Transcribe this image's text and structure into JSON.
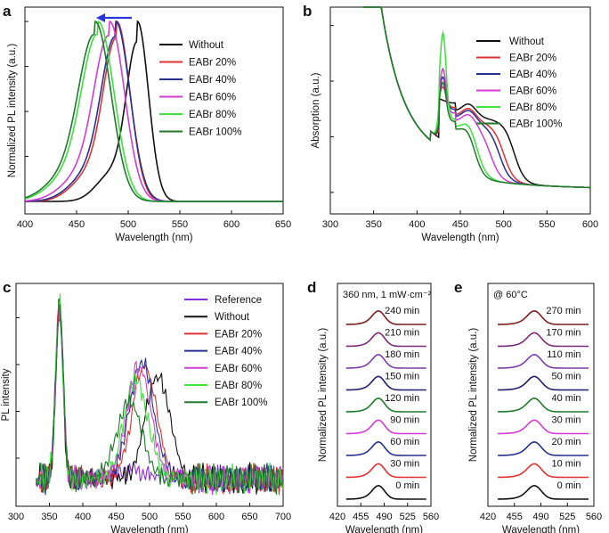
{
  "colors": {
    "Without": "#111111",
    "EABr 20%": "#e03030",
    "EABr 40%": "#27308f",
    "EABr 60%": "#d23cd2",
    "EABr 80%": "#3ee03e",
    "EABr 100%": "#1f7a2a",
    "Reference": "#8a2be2"
  },
  "panels": {
    "a": {
      "letter": "a"
    },
    "b": {
      "letter": "b"
    },
    "c": {
      "letter": "c"
    },
    "d": {
      "letter": "d",
      "annotation": "360 nm, 1 mW·cm⁻²"
    },
    "e": {
      "letter": "e",
      "annotation": "@ 60°C"
    }
  },
  "chart_data": [
    {
      "id": "a",
      "type": "line",
      "xlabel": "Wavelength (nm)",
      "ylabel": "Normalized PL intensity (a.u.)",
      "xlim": [
        400,
        650
      ],
      "xticks": [
        "400",
        "450",
        "500",
        "550",
        "600",
        "650"
      ],
      "ylim": [
        0,
        1.05
      ],
      "annotation": "blue arrow pointing left (blue shift)",
      "legend_position": "top-right",
      "series": [
        {
          "name": "Without",
          "peak": 509,
          "fwhm": 25
        },
        {
          "name": "EABr 20%",
          "peak": 489,
          "fwhm": 30
        },
        {
          "name": "EABr 40%",
          "peak": 488,
          "fwhm": 32
        },
        {
          "name": "EABr 60%",
          "peak": 482,
          "fwhm": 34
        },
        {
          "name": "EABr 80%",
          "peak": 471,
          "fwhm": 36
        },
        {
          "name": "EABr 100%",
          "peak": 468,
          "fwhm": 36
        }
      ]
    },
    {
      "id": "b",
      "type": "line",
      "xlabel": "Wavelength (nm)",
      "ylabel": "Absorption (a.u.)",
      "xlim": [
        300,
        600
      ],
      "xticks": [
        "300",
        "350",
        "400",
        "450",
        "500",
        "550",
        "600"
      ],
      "legend_position": "top-right",
      "series": [
        {
          "name": "Without",
          "band_edge": 512,
          "peak_430": 0.0
        },
        {
          "name": "EABr 20%",
          "band_edge": 500,
          "peak_430": 0.03
        },
        {
          "name": "EABr 40%",
          "band_edge": 495,
          "peak_430": 0.05
        },
        {
          "name": "EABr 60%",
          "band_edge": 485,
          "peak_430": 0.07
        },
        {
          "name": "EABr 80%",
          "band_edge": 470,
          "peak_430": 0.14
        },
        {
          "name": "EABr 100%",
          "band_edge": 465,
          "peak_430": 0.06
        }
      ]
    },
    {
      "id": "c",
      "type": "line",
      "xlabel": "Wavelength (nm)",
      "ylabel": "PL intensity",
      "xlim": [
        300,
        700
      ],
      "xticks": [
        "300",
        "350",
        "400",
        "450",
        "500",
        "550",
        "600",
        "650",
        "700"
      ],
      "legend_position": "top-right",
      "series": [
        {
          "name": "Reference",
          "peak": 0
        },
        {
          "name": "Without",
          "peak": 512
        },
        {
          "name": "EABr 20%",
          "peak": 492
        },
        {
          "name": "EABr 40%",
          "peak": 488
        },
        {
          "name": "EABr 60%",
          "peak": 484
        },
        {
          "name": "EABr 80%",
          "peak": 480
        },
        {
          "name": "EABr 100%",
          "peak": 470
        }
      ]
    },
    {
      "id": "d",
      "type": "line",
      "xlabel": "Wavelength (nm)",
      "ylabel": "Normalized PL intensity (a.u.)",
      "xlim": [
        420,
        560
      ],
      "xticks": [
        "420",
        "455",
        "490",
        "525",
        "560"
      ],
      "traces": [
        {
          "label": "240 min",
          "color": "#7a1e1e"
        },
        {
          "label": "210 min",
          "color": "#7a2a7a"
        },
        {
          "label": "180 min",
          "color": "#7d3ca8"
        },
        {
          "label": "150 min",
          "color": "#1f1f6e"
        },
        {
          "label": "120 min",
          "color": "#1f7a2a"
        },
        {
          "label": "90 min",
          "color": "#d23cd2"
        },
        {
          "label": "60 min",
          "color": "#27308f"
        },
        {
          "label": "30 min",
          "color": "#e03030"
        },
        {
          "label": "0 min",
          "color": "#111111"
        }
      ]
    },
    {
      "id": "e",
      "type": "line",
      "xlabel": "Wavelength (nm)",
      "ylabel": "Normalized PL intensity (a.u.)",
      "xlim": [
        420,
        560
      ],
      "xticks": [
        "420",
        "455",
        "490",
        "525",
        "560"
      ],
      "traces": [
        {
          "label": "270 min",
          "color": "#7a1e1e"
        },
        {
          "label": "170 min",
          "color": "#7a2a7a"
        },
        {
          "label": "110 min",
          "color": "#7d3ca8"
        },
        {
          "label": "50 min",
          "color": "#1f1f6e"
        },
        {
          "label": "40 min",
          "color": "#1f7a2a"
        },
        {
          "label": "30 min",
          "color": "#d23cd2"
        },
        {
          "label": "20 min",
          "color": "#27308f"
        },
        {
          "label": "10 min",
          "color": "#e03030"
        },
        {
          "label": "0 min",
          "color": "#111111"
        }
      ]
    }
  ]
}
